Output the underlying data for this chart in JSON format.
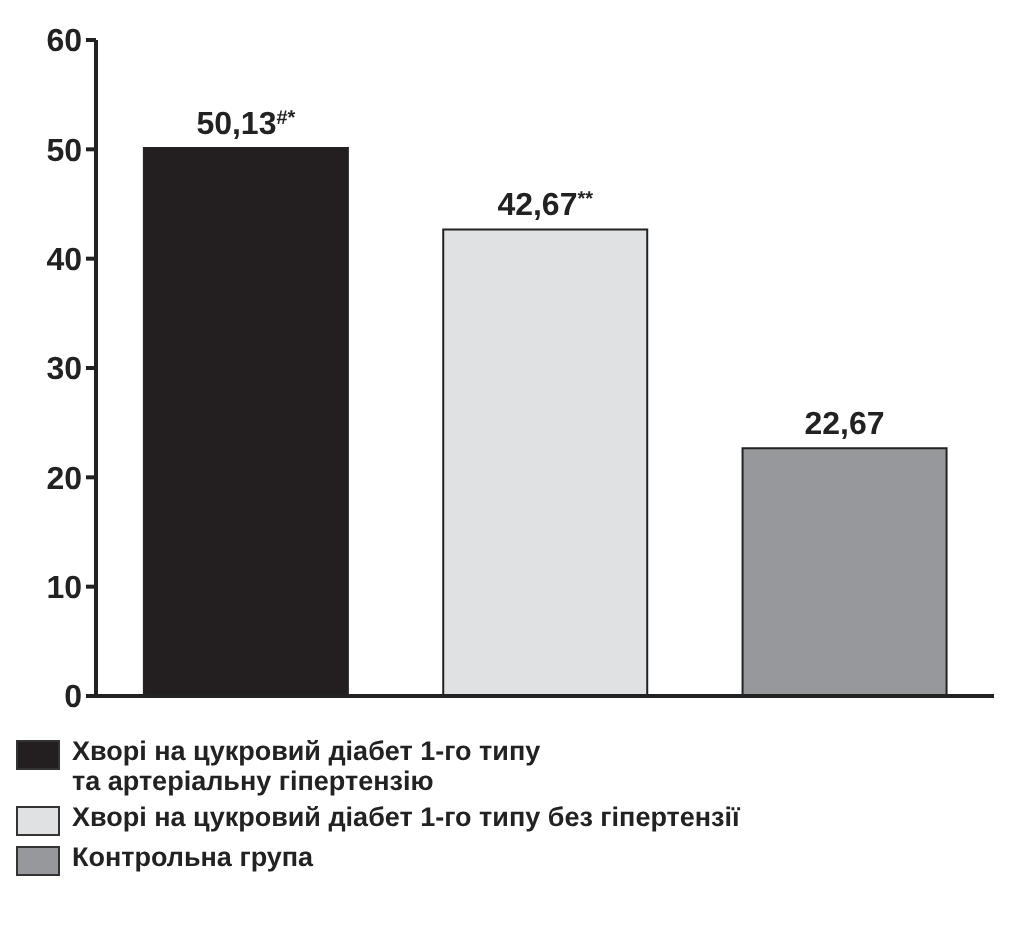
{
  "chart_data": {
    "type": "bar",
    "categories": [
      null,
      null,
      null
    ],
    "series": [
      {
        "name": "Хворі на цукровий діабет 1-го типу та артеріальну гіпертензію",
        "color": "#231f20",
        "values": [
          50.13,
          null,
          null
        ],
        "value_labels": [
          "50,13$^{#*}$",
          null,
          null
        ]
      },
      {
        "name": "Хворі на цукровий діабет 1-го типу без гіпертензії",
        "color": "#e0e1e3",
        "values": [
          null,
          42.67,
          null
        ],
        "value_labels": [
          null,
          "42,67$^{**}$",
          null
        ]
      },
      {
        "name": "Контрольна група",
        "color": "#97989b",
        "values": [
          null,
          null,
          22.67
        ],
        "value_labels": [
          null,
          null,
          "22,67"
        ]
      }
    ],
    "ylim": [
      0,
      60
    ],
    "yticks": [
      0,
      10,
      20,
      30,
      40,
      50,
      60
    ],
    "grid": false,
    "legend": "bottom"
  }
}
